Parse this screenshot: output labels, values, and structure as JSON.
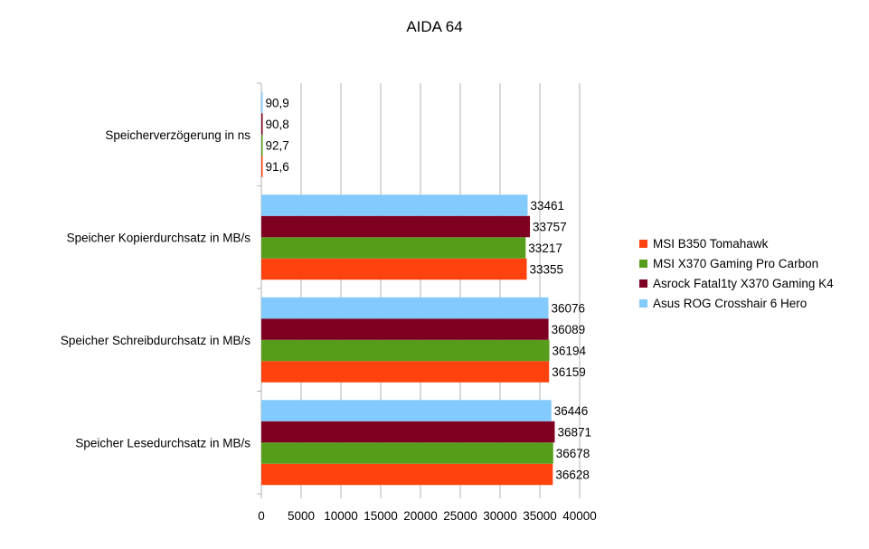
{
  "title": "AIDA 64",
  "chart_data": {
    "type": "bar",
    "orientation": "horizontal",
    "title": "AIDA 64",
    "categories": [
      "Speicher Lesedurchsatz in MB/s",
      "Speicher Schreibdurchsatz in MB/s",
      "Speicher Kopierdurchsatz in MB/s",
      "Speicherverzögerung in ns"
    ],
    "series": [
      {
        "name": "MSI B350 Tomahawk",
        "color": "#ff420e",
        "values": [
          36628,
          36159,
          33355,
          91.6
        ],
        "labels": [
          "36628",
          "36159",
          "33355",
          "91,6"
        ]
      },
      {
        "name": "MSI X370 Gaming Pro Carbon",
        "color": "#579d1c",
        "values": [
          36678,
          36194,
          33217,
          92.7
        ],
        "labels": [
          "36678",
          "36194",
          "33217",
          "92,7"
        ]
      },
      {
        "name": "Asrock Fatal1ty X370 Gaming K4",
        "color": "#7e0021",
        "values": [
          36871,
          36089,
          33757,
          90.8
        ],
        "labels": [
          "36871",
          "36089",
          "33757",
          "90,8"
        ]
      },
      {
        "name": "Asus ROG Crosshair 6 Hero",
        "color": "#83caff",
        "values": [
          36446,
          36076,
          33461,
          90.9
        ],
        "labels": [
          "36446",
          "36076",
          "33461",
          "90,9"
        ]
      }
    ],
    "xlim": [
      0,
      40000
    ],
    "xticks": [
      "0",
      "5000",
      "10000",
      "15000",
      "20000",
      "25000",
      "30000",
      "35000",
      "40000"
    ],
    "grid": true,
    "legend_position": "right"
  }
}
